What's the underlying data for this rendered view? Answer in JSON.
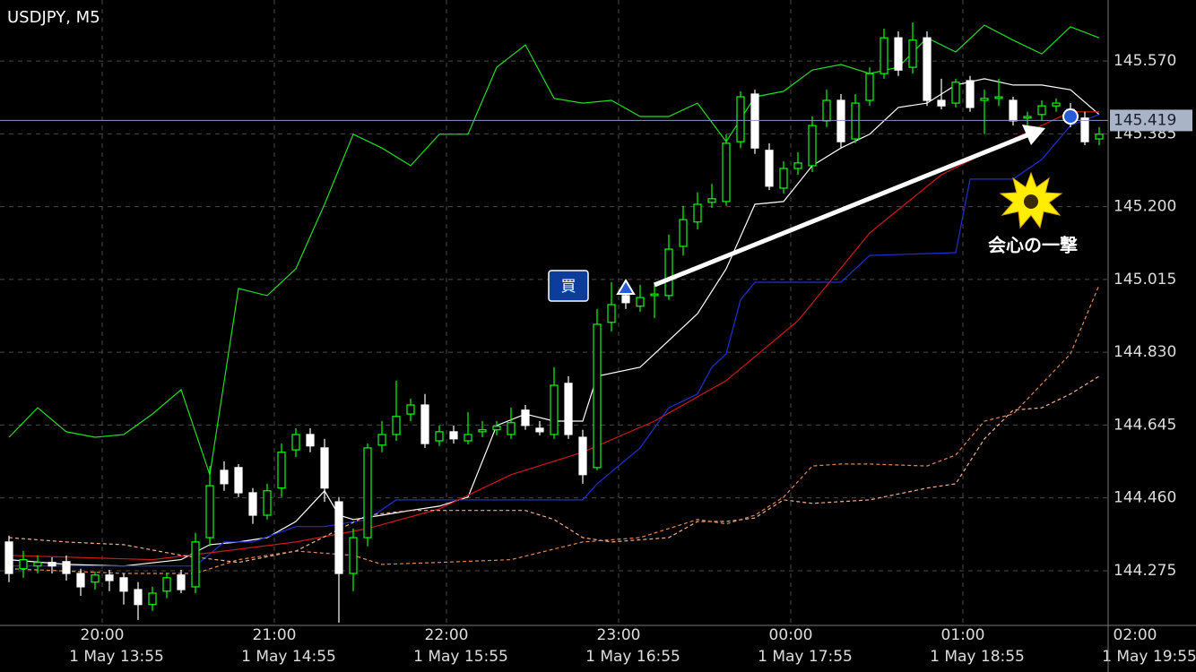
{
  "chart_data": {
    "type": "candlestick",
    "title": "USDJPY, M5",
    "ylim": [
      144.136,
      145.725
    ],
    "yticks": [
      144.275,
      {
        "value": 144.46,
        "label": "144.460"
      },
      144.645,
      {
        "value": 144.83,
        "label": "144.830"
      },
      145.015,
      {
        "value": 145.2,
        "label": "145.200"
      },
      145.385,
      {
        "value": 145.57,
        "label": "145.570"
      }
    ],
    "xlim": [
      -0.625,
      76.625
    ],
    "xticks": [
      {
        "value": 6.5,
        "label": "20:00"
      },
      {
        "value": 18.5,
        "label": "21:00"
      },
      {
        "value": 30.5,
        "label": "22:00"
      },
      {
        "value": 42.5,
        "label": "23:00"
      },
      {
        "value": 54.5,
        "label": "00:00"
      },
      {
        "value": 66.5,
        "label": "01:00"
      },
      {
        "value": 78.5,
        "label": "02:00"
      }
    ],
    "xticks_lower": [
      {
        "value": 7.5,
        "label": "1 May 13:55"
      },
      {
        "value": 19.5,
        "label": "1 May 14:55"
      },
      {
        "value": 31.5,
        "label": "1 May 15:55"
      },
      {
        "value": 43.5,
        "label": "1 May 16:55"
      },
      {
        "value": 55.5,
        "label": "1 May 17:55"
      },
      {
        "value": 67.5,
        "label": "1 May 18:55"
      },
      {
        "value": 79.5,
        "label": "1 May 19:55"
      }
    ],
    "grid": true,
    "up_color": "#00ff00",
    "down_color": "#ffffff",
    "candles": {
      "open": [
        144.348,
        144.28,
        144.287,
        144.296,
        144.298,
        144.268,
        144.246,
        144.264,
        144.257,
        144.227,
        144.189,
        144.223,
        144.264,
        144.234,
        144.359,
        144.53,
        144.537,
        144.473,
        144.416,
        144.485,
        144.582,
        144.621,
        144.587,
        144.45,
        144.268,
        144.359,
        144.594,
        144.621,
        144.673,
        144.696,
        144.605,
        144.628,
        144.605,
        144.628,
        144.633,
        144.621,
        144.683,
        144.637,
        144.621,
        144.751,
        144.614,
        144.537,
        144.906,
        144.974,
        144.947,
        144.974,
        144.974,
        145.099,
        145.161,
        145.211,
        145.213,
        145.365,
        145.486,
        145.343,
        145.247,
        145.297,
        145.304,
        145.418,
        145.47,
        145.372,
        145.47,
        145.538,
        145.629,
        145.554,
        145.629,
        145.47,
        145.463,
        145.52,
        145.47,
        145.475,
        145.47,
        145.425,
        145.434,
        145.456,
        145.447,
        145.425,
        145.372
      ],
      "high": [
        144.364,
        144.325,
        144.314,
        144.309,
        144.314,
        144.28,
        144.273,
        144.277,
        144.268,
        144.246,
        144.234,
        144.268,
        144.277,
        144.371,
        144.541,
        144.553,
        144.546,
        144.485,
        144.496,
        144.598,
        144.637,
        144.637,
        144.61,
        144.462,
        144.382,
        144.598,
        144.655,
        144.758,
        144.712,
        144.724,
        144.644,
        144.644,
        144.678,
        144.655,
        144.655,
        144.689,
        144.696,
        144.655,
        144.792,
        144.769,
        144.633,
        144.94,
        145.008,
        145.001,
        145.001,
        145.008,
        145.129,
        145.202,
        145.236,
        145.258,
        145.384,
        145.493,
        145.497,
        145.361,
        145.315,
        145.338,
        145.429,
        145.497,
        145.486,
        145.486,
        145.554,
        145.652,
        145.645,
        145.668,
        145.645,
        145.525,
        145.525,
        145.532,
        145.497,
        145.525,
        145.479,
        145.441,
        145.47,
        145.475,
        145.463,
        145.441,
        145.402
      ],
      "low": [
        144.246,
        144.257,
        144.268,
        144.268,
        144.25,
        144.211,
        144.227,
        144.223,
        144.189,
        144.15,
        144.173,
        144.205,
        144.218,
        144.218,
        144.337,
        144.478,
        144.462,
        144.394,
        144.405,
        144.462,
        144.564,
        144.576,
        144.45,
        144.143,
        144.223,
        144.337,
        144.576,
        144.605,
        144.655,
        144.587,
        144.592,
        144.598,
        144.596,
        144.614,
        144.619,
        144.61,
        144.633,
        144.619,
        144.61,
        144.61,
        144.496,
        144.53,
        144.883,
        144.94,
        144.933,
        144.917,
        144.963,
        145.076,
        145.142,
        145.197,
        145.202,
        145.349,
        145.334,
        145.242,
        145.233,
        145.281,
        145.288,
        145.402,
        145.349,
        145.361,
        145.456,
        145.525,
        145.532,
        145.538,
        145.456,
        145.447,
        145.452,
        145.441,
        145.384,
        145.456,
        145.406,
        145.406,
        145.418,
        145.441,
        145.402,
        145.356,
        145.356
      ],
      "close": [
        144.268,
        144.303,
        144.296,
        144.287,
        144.268,
        144.234,
        144.264,
        144.25,
        144.223,
        144.189,
        144.218,
        144.257,
        144.227,
        144.348,
        144.491,
        144.496,
        144.473,
        144.416,
        144.478,
        144.576,
        144.621,
        144.592,
        144.485,
        144.268,
        144.359,
        144.587,
        144.621,
        144.667,
        144.696,
        144.598,
        144.628,
        144.61,
        144.621,
        144.633,
        144.642,
        144.651,
        144.644,
        144.628,
        144.746,
        144.621,
        144.519,
        144.901,
        144.951,
        144.956,
        144.969,
        144.978,
        145.092,
        145.167,
        145.206,
        145.22,
        145.361,
        145.479,
        145.349,
        145.252,
        145.297,
        145.311,
        145.406,
        145.47,
        145.365,
        145.463,
        145.538,
        145.629,
        145.547,
        145.623,
        145.47,
        145.456,
        145.516,
        145.452,
        145.475,
        145.479,
        145.418,
        145.429,
        145.456,
        145.463,
        145.418,
        145.365,
        145.384
      ]
    },
    "lines": [
      {
        "color": "#22dd22",
        "dashed": false,
        "x": [
          0,
          2,
          4,
          6,
          8,
          10,
          12,
          14,
          16,
          18,
          20,
          22,
          24,
          26,
          28,
          30,
          32,
          34,
          36,
          38,
          40,
          42,
          44,
          46,
          48,
          50,
          52,
          54,
          56,
          58,
          60,
          62,
          64,
          66,
          68,
          70,
          72,
          74,
          76
        ],
        "values": [
          144.614,
          144.689,
          144.628,
          144.614,
          144.621,
          144.673,
          144.735,
          144.519,
          144.992,
          144.974,
          145.042,
          145.206,
          145.384,
          145.349,
          145.304,
          145.384,
          145.384,
          145.554,
          145.611,
          145.475,
          145.463,
          145.47,
          145.429,
          145.429,
          145.463,
          145.365,
          145.479,
          145.493,
          145.547,
          145.561,
          145.538,
          145.554,
          145.629,
          145.593,
          145.661,
          145.623,
          145.588,
          145.657,
          145.629
        ]
      },
      {
        "color": "#ffffff",
        "dashed": false,
        "x": [
          0,
          4,
          8,
          12,
          14,
          16,
          18,
          20,
          22,
          23,
          24,
          26,
          28,
          30,
          32,
          34,
          36,
          38,
          40,
          41,
          44,
          46,
          48,
          50,
          52,
          54,
          56,
          58,
          60,
          62,
          64,
          66,
          68,
          70,
          72,
          74,
          76
        ],
        "values": [
          144.303,
          144.291,
          144.287,
          144.303,
          144.341,
          144.348,
          144.359,
          144.4,
          144.478,
          144.416,
          144.405,
          144.416,
          144.428,
          144.439,
          144.462,
          144.644,
          144.673,
          144.655,
          144.655,
          144.769,
          144.792,
          144.86,
          144.928,
          145.042,
          145.206,
          145.213,
          145.304,
          145.349,
          145.384,
          145.452,
          145.463,
          145.509,
          145.525,
          145.509,
          145.509,
          145.497,
          145.434
        ]
      },
      {
        "color": "#1f2fd0",
        "dashed": false,
        "x": [
          0,
          13,
          15,
          17,
          20,
          22,
          25,
          27,
          40,
          41,
          44,
          46,
          48,
          49,
          50,
          51,
          52,
          58,
          60,
          66,
          67,
          70,
          72,
          74,
          76
        ],
        "values": [
          144.287,
          144.287,
          144.348,
          144.348,
          144.387,
          144.387,
          144.405,
          144.455,
          144.455,
          144.496,
          144.587,
          144.689,
          144.724,
          144.792,
          144.826,
          144.963,
          145.008,
          145.008,
          145.076,
          145.083,
          145.27,
          145.27,
          145.32,
          145.406,
          145.434
        ]
      },
      {
        "color": "#d01818",
        "dashed": false,
        "x": [
          0,
          10,
          15,
          20,
          25,
          30,
          35,
          40,
          45,
          50,
          55,
          60,
          65,
          70,
          72,
          74,
          76
        ],
        "values": [
          144.314,
          144.303,
          144.325,
          144.348,
          144.382,
          144.432,
          144.519,
          144.576,
          144.655,
          144.758,
          144.91,
          145.133,
          145.281,
          145.372,
          145.406,
          145.441,
          145.441
        ]
      },
      {
        "color": "#f0b090",
        "dashed": true,
        "x": [
          0,
          4,
          8,
          12,
          16,
          20,
          25,
          28,
          32,
          36,
          38,
          40,
          42,
          46,
          48,
          50,
          52,
          54,
          56,
          60,
          64,
          66,
          68,
          70,
          72,
          74,
          76
        ],
        "values": [
          144.359,
          144.348,
          144.341,
          144.314,
          144.296,
          144.325,
          144.416,
          144.428,
          144.428,
          144.428,
          144.405,
          144.359,
          144.348,
          144.359,
          144.4,
          144.4,
          144.409,
          144.455,
          144.446,
          144.455,
          144.485,
          144.496,
          144.61,
          144.683,
          144.689,
          144.724,
          144.769
        ]
      },
      {
        "color": "#e08850",
        "dashed": true,
        "x": [
          0,
          8,
          13,
          16,
          20,
          24,
          26,
          30,
          35,
          40,
          44,
          48,
          50,
          52,
          54,
          56,
          58,
          60,
          64,
          66,
          68,
          70,
          74,
          76
        ],
        "values": [
          144.28,
          144.268,
          144.268,
          144.303,
          144.325,
          144.314,
          144.291,
          144.296,
          144.303,
          144.348,
          144.359,
          144.405,
          144.394,
          144.416,
          144.462,
          144.541,
          144.546,
          144.546,
          144.541,
          144.569,
          144.655,
          144.673,
          144.826,
          145.001
        ]
      }
    ],
    "current_price": 145.419,
    "annotations": {
      "buy_label": "買",
      "caption": "会心の一撃"
    }
  }
}
